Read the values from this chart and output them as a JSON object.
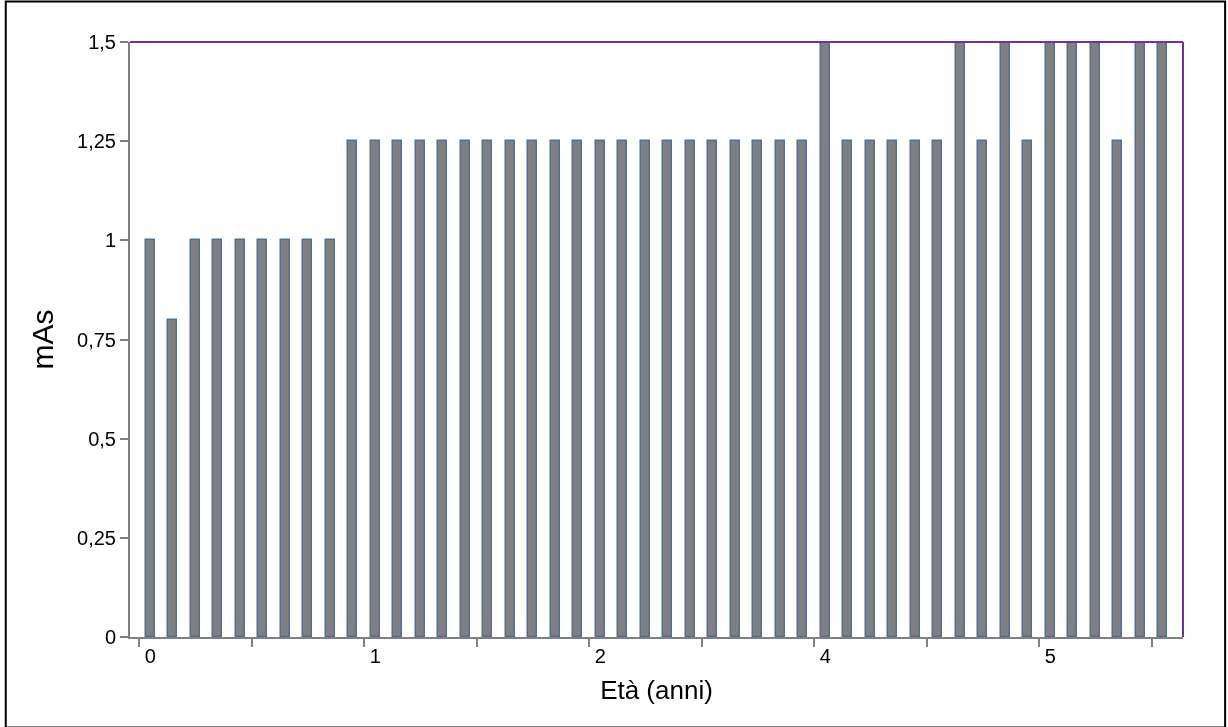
{
  "chart_data": {
    "type": "bar",
    "xlabel": "Età (anni)",
    "ylabel": "mAs",
    "categories": [
      "0",
      null,
      null,
      null,
      null,
      null,
      null,
      null,
      null,
      null,
      "1",
      null,
      null,
      null,
      null,
      null,
      null,
      null,
      null,
      null,
      "2",
      null,
      null,
      null,
      null,
      null,
      null,
      null,
      null,
      null,
      "4",
      null,
      null,
      null,
      null,
      null,
      null,
      null,
      null,
      null,
      "5",
      null,
      null,
      null,
      null,
      null
    ],
    "series": [
      {
        "color": "#808080",
        "values": [
          1,
          0.8,
          1,
          1,
          1,
          1,
          1,
          1,
          1,
          1.25,
          1.25,
          1.25,
          1.25,
          1.25,
          1.25,
          1.25,
          1.25,
          1.25,
          1.25,
          1.25,
          1.25,
          1.25,
          1.25,
          1.25,
          1.25,
          1.25,
          1.25,
          1.25,
          1.25,
          1.25,
          1.5,
          1.25,
          1.25,
          1.25,
          1.25,
          1.25,
          1.5,
          1.25,
          1.5,
          1.25,
          1.5,
          1.5,
          1.5,
          1.25,
          1.5,
          1.5
        ]
      }
    ],
    "ylim": [
      0,
      1.5
    ],
    "yticks": [
      0,
      {
        "value": 0.25,
        "label": "0,25"
      },
      {
        "value": 0.5,
        "label": "0,5"
      },
      {
        "value": 0.75,
        "label": "0,75"
      },
      1,
      {
        "value": 1.25,
        "label": "1,25"
      },
      {
        "value": 1.5,
        "label": "1,5"
      }
    ]
  }
}
